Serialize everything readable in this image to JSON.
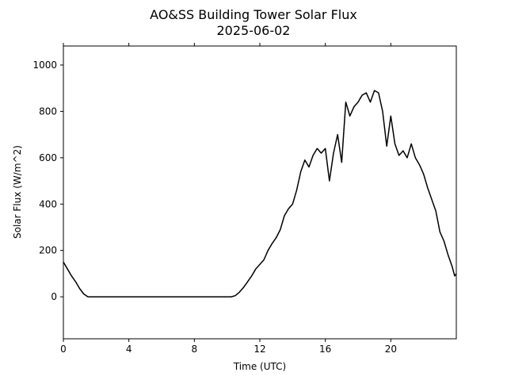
{
  "chart_data": {
    "type": "line",
    "title": "AO&SS Building Tower Solar Flux",
    "subtitle": "2025-06-02",
    "x_label": "Time (UTC)",
    "y_label": "Solar Flux (W/m^2)",
    "xlim": [
      0,
      24
    ],
    "ylim": [
      -181,
      1082
    ],
    "xticks": [
      0,
      4,
      8,
      12,
      16,
      20
    ],
    "yticks": [
      0,
      200,
      400,
      600,
      800,
      1000
    ],
    "series": [
      {
        "name": "Solar Flux",
        "color": "#000000",
        "x": [
          0,
          0.25,
          0.5,
          0.75,
          1.0,
          1.25,
          1.5,
          10.25,
          10.5,
          10.75,
          11,
          11.25,
          11.5,
          11.75,
          12,
          12.25,
          12.5,
          12.75,
          13,
          13.25,
          13.5,
          13.75,
          14,
          14.25,
          14.5,
          14.75,
          15,
          15.25,
          15.5,
          15.75,
          16,
          16.25,
          16.5,
          16.75,
          17,
          17.25,
          17.5,
          17.75,
          18,
          18.25,
          18.5,
          18.75,
          19,
          19.25,
          19.5,
          19.75,
          20,
          20.25,
          20.5,
          20.75,
          21,
          21.25,
          21.5,
          21.75,
          22,
          22.25,
          22.5,
          22.75,
          23,
          23.25,
          23.5,
          23.75,
          23.9,
          24
        ],
        "values": [
          150,
          120,
          90,
          65,
          35,
          12,
          0,
          0,
          5,
          20,
          40,
          65,
          90,
          120,
          140,
          160,
          200,
          230,
          255,
          290,
          350,
          380,
          400,
          460,
          540,
          590,
          560,
          610,
          640,
          620,
          640,
          500,
          620,
          700,
          580,
          840,
          780,
          820,
          840,
          870,
          880,
          840,
          890,
          880,
          800,
          650,
          780,
          660,
          610,
          630,
          600,
          660,
          600,
          570,
          530,
          470,
          420,
          370,
          280,
          240,
          180,
          130,
          90,
          100
        ]
      }
    ]
  }
}
